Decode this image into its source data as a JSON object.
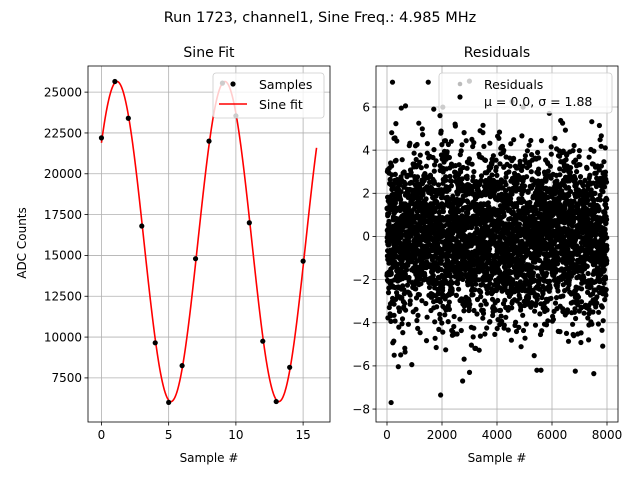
{
  "suptitle": "Run 1723, channel1, Sine Freq.: 4.985 MHz",
  "chart_data": [
    {
      "type": "line",
      "title": "Sine Fit",
      "xlabel": "Sample #",
      "ylabel": "ADC Counts",
      "xlim": [
        -1,
        17
      ],
      "ylim": [
        4800,
        26600
      ],
      "xticks": [
        0,
        5,
        10,
        15
      ],
      "yticks": [
        7500,
        10000,
        12500,
        15000,
        17500,
        20000,
        22500,
        25000
      ],
      "grid": true,
      "legend": {
        "placement": "upper right",
        "entries": [
          "Samples",
          "Sine fit"
        ]
      },
      "series": [
        {
          "name": "Samples",
          "kind": "scatter",
          "color": "#000000",
          "x": [
            0,
            1,
            2,
            3,
            4,
            5,
            6,
            7,
            8,
            9,
            10,
            11,
            12,
            13,
            14,
            15
          ],
          "y": [
            22200,
            25650,
            23400,
            16800,
            9650,
            6000,
            8250,
            14800,
            22000,
            25550,
            23550,
            17000,
            9750,
            6050,
            8150,
            14650
          ]
        },
        {
          "name": "Sine fit",
          "kind": "line",
          "color": "#ff0000",
          "model": {
            "offset": 15850,
            "amplitude": 9800,
            "period": 8.025,
            "phase": 0.665,
            "x_start": 0,
            "x_end": 16
          }
        }
      ]
    },
    {
      "type": "scatter",
      "title": "Residuals",
      "xlabel": "Sample #",
      "ylabel": "",
      "xlim": [
        -400,
        8400
      ],
      "ylim": [
        -8.6,
        7.9
      ],
      "xticks": [
        0,
        2000,
        4000,
        6000,
        8000
      ],
      "yticks": [
        -8,
        -6,
        -4,
        -2,
        0,
        2,
        4,
        6
      ],
      "grid": true,
      "legend": {
        "placement": "upper right",
        "entries": [
          "Residuals",
          "μ = 0.0, σ = 1.88"
        ]
      },
      "series": [
        {
          "name": "Residuals",
          "color": "#000000",
          "n_points": 8000,
          "mean": 0.0,
          "std": 1.88,
          "outliers": [
            [
              150,
              -7.7
            ],
            [
              200,
              7.15
            ],
            [
              1950,
              -7.35
            ],
            [
              1500,
              7.15
            ],
            [
              2750,
              -6.7
            ],
            [
              3000,
              -6.3
            ],
            [
              5450,
              -6.2
            ],
            [
              5600,
              -6.2
            ],
            [
              4550,
              6.25
            ],
            [
              4950,
              6.0
            ],
            [
              520,
              5.95
            ],
            [
              1700,
              5.9
            ]
          ]
        }
      ]
    }
  ]
}
